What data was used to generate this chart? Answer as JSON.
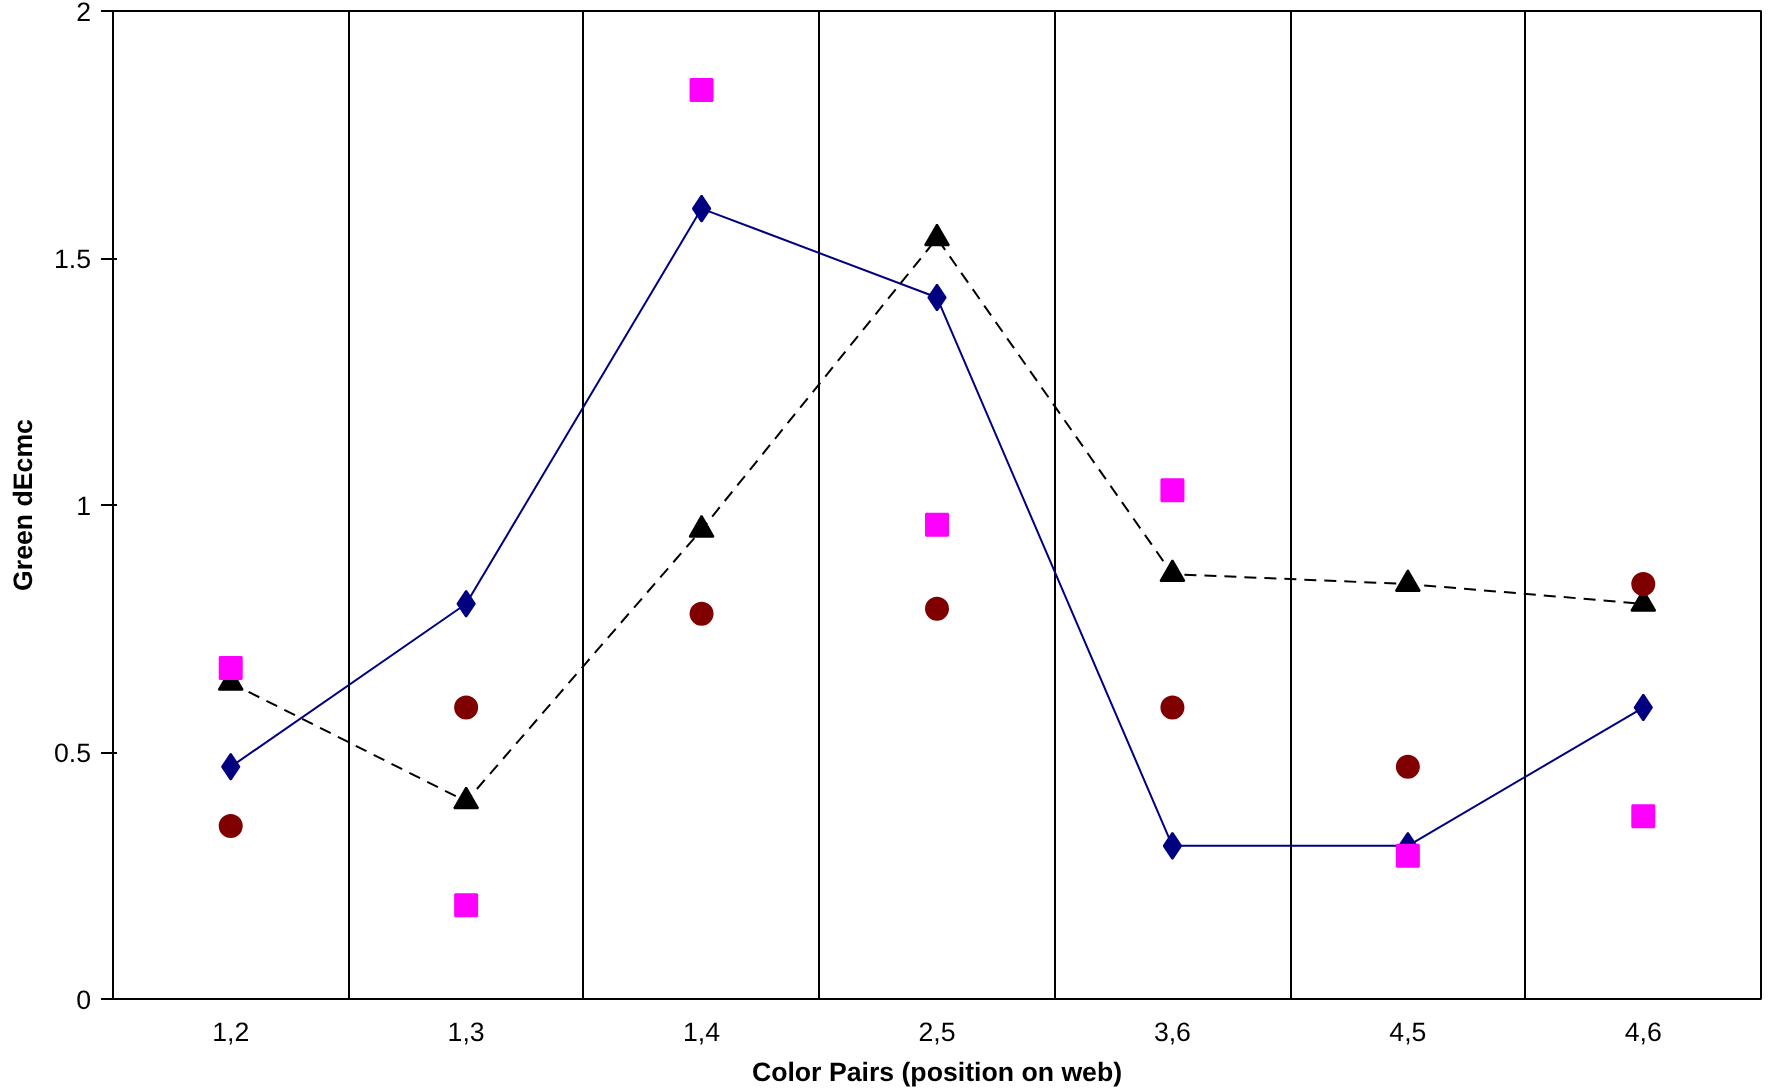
{
  "chart_data": {
    "type": "line",
    "xlabel": "Color Pairs (position on web)",
    "ylabel": "Green dEcmc",
    "categories": [
      "1,2",
      "1,3",
      "1,4",
      "2,5",
      "3,6",
      "4,5",
      "4,6"
    ],
    "ylim": [
      0,
      2
    ],
    "yticks": [
      0,
      0.5,
      1,
      1.5,
      2
    ],
    "grid": "x",
    "series": [
      {
        "marker": "diamond",
        "line_style": "solid",
        "color": "#000080",
        "values": [
          0.47,
          0.8,
          1.6,
          1.42,
          0.31,
          0.31,
          0.59
        ]
      },
      {
        "marker": "triangle",
        "line_style": "dashed",
        "color": "#000000",
        "values": [
          0.64,
          0.4,
          0.95,
          1.54,
          0.86,
          0.84,
          0.8
        ]
      },
      {
        "type": "scatter",
        "marker": "square",
        "color": "#ff00ff",
        "values": [
          0.67,
          0.19,
          1.84,
          0.96,
          1.03,
          0.29,
          0.37
        ]
      },
      {
        "type": "scatter",
        "marker": "circle",
        "color": "#800000",
        "values": [
          0.35,
          0.59,
          0.78,
          0.79,
          0.59,
          0.47,
          0.84
        ]
      }
    ]
  }
}
